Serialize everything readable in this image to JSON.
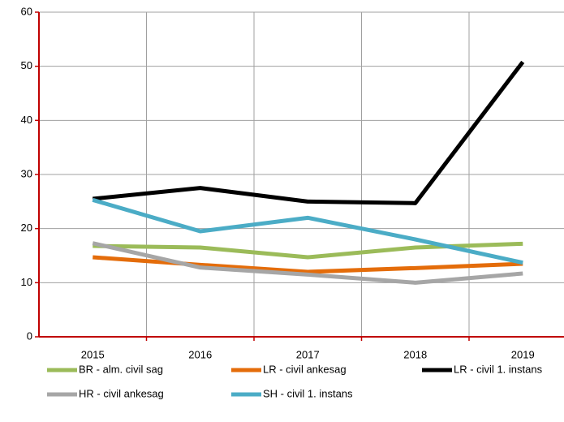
{
  "chart_data": {
    "type": "line",
    "categories": [
      "2015",
      "2016",
      "2017",
      "2018",
      "2019"
    ],
    "series": [
      {
        "name": "BR - alm. civil sag",
        "color": "#9bbb59",
        "values": [
          16.8,
          16.5,
          14.7,
          16.5,
          17.2
        ]
      },
      {
        "name": "LR - civil ankesag",
        "color": "#e46c0a",
        "values": [
          14.7,
          13.3,
          12.0,
          12.7,
          13.5
        ]
      },
      {
        "name": "LR - civil 1. instans",
        "color": "#000000",
        "values": [
          25.5,
          27.5,
          25.0,
          24.7,
          50.8
        ]
      },
      {
        "name": "HR - civil ankesag",
        "color": "#a6a6a6",
        "values": [
          17.3,
          12.8,
          11.5,
          10.0,
          11.7
        ]
      },
      {
        "name": "SH - civil 1. instans",
        "color": "#4bacc6",
        "values": [
          25.3,
          19.5,
          22.0,
          18.0,
          13.7
        ]
      }
    ],
    "ylim": [
      0,
      60
    ],
    "yticks": [
      0,
      10,
      20,
      30,
      40,
      50,
      60
    ],
    "grid": true,
    "axis_color": "#c00000"
  }
}
